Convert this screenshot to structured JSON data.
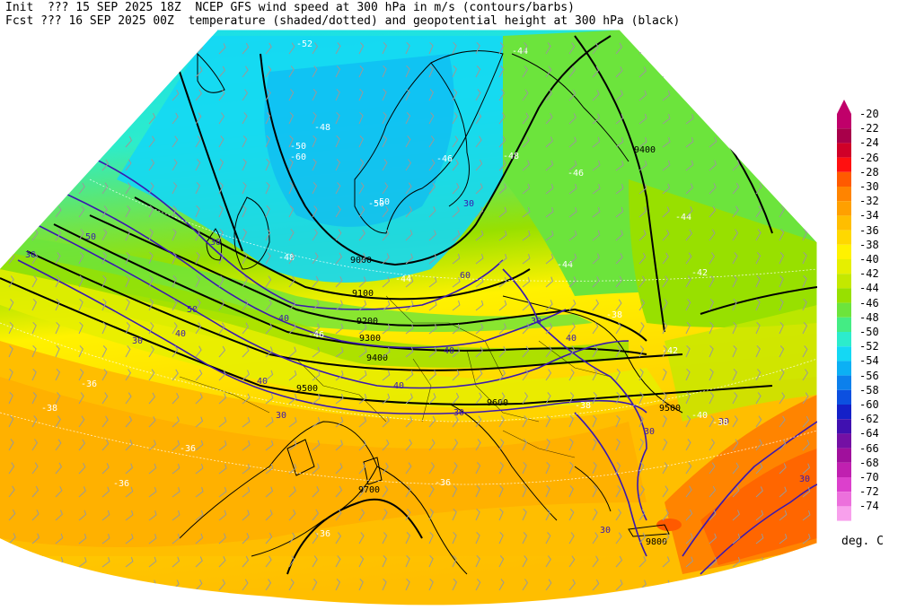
{
  "header": {
    "line1": "Init  ??? 15 SEP 2025 18Z  NCEP GFS wind speed at 300 hPa in m/s (contours/barbs)",
    "line2": "Fcst ??? 16 SEP 2025 00Z  temperature (shaded/dotted) and geopotential height at 300 hPa (black)"
  },
  "colorbar": {
    "unit": "deg. C",
    "levels": [
      "-20",
      "-22",
      "-24",
      "-26",
      "-28",
      "-30",
      "-32",
      "-34",
      "-36",
      "-38",
      "-40",
      "-42",
      "-44",
      "-46",
      "-48",
      "-50",
      "-52",
      "-54",
      "-56",
      "-58",
      "-60",
      "-62",
      "-64",
      "-66",
      "-68",
      "-70",
      "-72",
      "-74"
    ],
    "colors": [
      "#c0006a",
      "#a8004a",
      "#d00028",
      "#ff1010",
      "#ff5a00",
      "#ff8400",
      "#ffa000",
      "#ffbe00",
      "#ffd800",
      "#fff200",
      "#e6ef00",
      "#c4e800",
      "#98e000",
      "#6ce43c",
      "#44ec84",
      "#2ceccc",
      "#14d8f4",
      "#0cb0f4",
      "#0c80ec",
      "#0c50e0",
      "#1420c8",
      "#4010b0",
      "#7410a4",
      "#a0109c",
      "#c020b0",
      "#dc40cc",
      "#ec70dc",
      "#f8a0ec"
    ]
  },
  "map_labels": {
    "heights": [
      "9000",
      "9100",
      "9200",
      "9300",
      "9400",
      "9500",
      "9600",
      "9700",
      "9800",
      "9400",
      "9500"
    ],
    "wind": [
      "30",
      "40",
      "50",
      "60",
      "30",
      "40",
      "30",
      "40",
      "50",
      "40",
      "30",
      "30",
      "40",
      "30",
      "30",
      "30",
      "30",
      "40",
      "30",
      "30"
    ],
    "temps": [
      "-52",
      "-48",
      "-50",
      "-60",
      "-50",
      "-48",
      "-46",
      "-44",
      "-42",
      "-38",
      "-36",
      "-36",
      "-36",
      "-36",
      "-38",
      "-44",
      "-44",
      "-42",
      "-40",
      "-38",
      "-36",
      "-50",
      "-46",
      "-48",
      "-46",
      "-44",
      "-38"
    ]
  }
}
